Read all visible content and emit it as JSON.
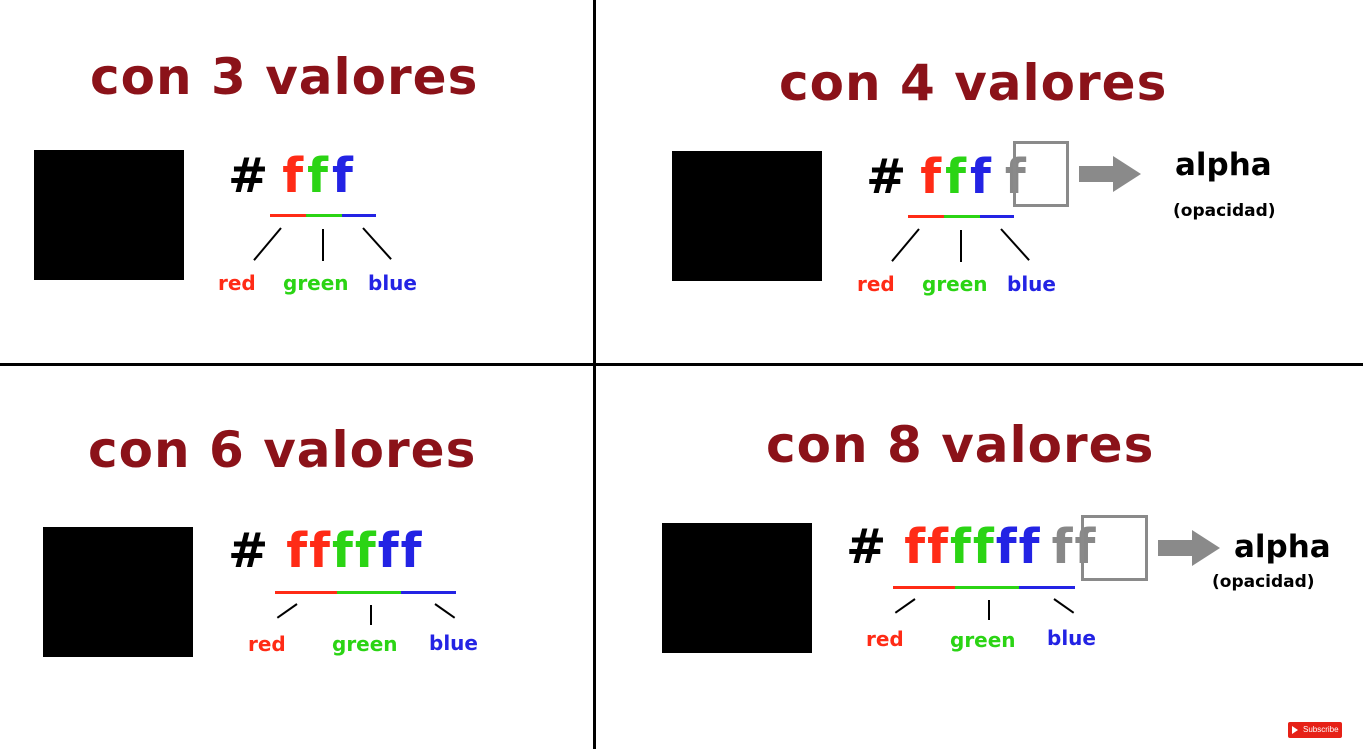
{
  "panels": [
    {
      "title": "con 3 valores",
      "hash": "#",
      "red": [
        "f"
      ],
      "green": [
        "f"
      ],
      "blue": [
        "f"
      ],
      "labels": {
        "red": "red",
        "green": "green",
        "blue": "blue"
      }
    },
    {
      "title": "con 4 valores",
      "hash": "#",
      "red": [
        "f"
      ],
      "green": [
        "f"
      ],
      "blue": [
        "f"
      ],
      "alpha_chars": [
        "f"
      ],
      "labels": {
        "red": "red",
        "green": "green",
        "blue": "blue"
      },
      "alpha": "alpha",
      "alpha_note": "(opacidad)"
    },
    {
      "title": "con 6 valores",
      "hash": "#",
      "red": [
        "f",
        "f"
      ],
      "green": [
        "f",
        "f"
      ],
      "blue": [
        "f",
        "f"
      ],
      "labels": {
        "red": "red",
        "green": "green",
        "blue": "blue"
      }
    },
    {
      "title": "con 8 valores",
      "hash": "#",
      "red": [
        "f",
        "f"
      ],
      "green": [
        "f",
        "f"
      ],
      "blue": [
        "f",
        "f"
      ],
      "alpha_chars": [
        "f",
        "f"
      ],
      "labels": {
        "red": "red",
        "green": "green",
        "blue": "blue"
      },
      "alpha": "alpha",
      "alpha_note": "(opacidad)"
    }
  ],
  "colors": {
    "title": "#8b1219",
    "red": "#ff2b16",
    "green": "#2bd414",
    "blue": "#2323e4",
    "alpha": "#888888",
    "swatch": "#000000"
  },
  "icons": {
    "arrow": "right-arrow-icon",
    "subscribe": "youtube-play-icon"
  },
  "subscribe_label": "Subscribe"
}
